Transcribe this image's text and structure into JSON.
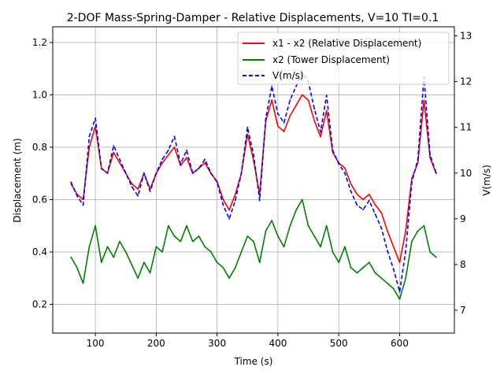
{
  "chart_data": {
    "type": "line",
    "title": "2-DOF Mass-Spring-Damper - Relative Displacements, V=10 TI=0.1",
    "xlabel": "Time (s)",
    "ylabel": "Displacement (m)",
    "y2label": "V(m/s)",
    "xlim": [
      30,
      690
    ],
    "ylim": [
      0.09,
      1.26
    ],
    "y2lim": [
      6.5,
      13.2
    ],
    "xticks": [
      "100",
      "200",
      "300",
      "400",
      "500",
      "600"
    ],
    "yticks": [
      "0.2",
      "0.4",
      "0.6",
      "0.8",
      "1.0",
      "1.2"
    ],
    "y2ticks": [
      "7",
      "8",
      "9",
      "10",
      "11",
      "12",
      "13"
    ],
    "grid": true,
    "legend_position": "upper right",
    "series": [
      {
        "name": "x1 - x2 (Relative Displacement)",
        "color": "#ff0000",
        "style": "solid",
        "axis": "left",
        "x": [
          60,
          70,
          80,
          90,
          100,
          110,
          120,
          130,
          140,
          150,
          160,
          170,
          180,
          190,
          200,
          210,
          220,
          230,
          240,
          250,
          260,
          270,
          280,
          290,
          300,
          310,
          320,
          330,
          340,
          350,
          360,
          370,
          380,
          390,
          400,
          410,
          420,
          430,
          440,
          450,
          460,
          470,
          480,
          490,
          500,
          510,
          520,
          530,
          540,
          550,
          560,
          570,
          580,
          590,
          600,
          610,
          620,
          630,
          640,
          650,
          660
        ],
        "y": [
          0.66,
          0.62,
          0.6,
          0.8,
          0.88,
          0.72,
          0.7,
          0.78,
          0.74,
          0.7,
          0.66,
          0.64,
          0.7,
          0.64,
          0.7,
          0.74,
          0.77,
          0.8,
          0.73,
          0.76,
          0.7,
          0.72,
          0.74,
          0.7,
          0.67,
          0.6,
          0.56,
          0.62,
          0.7,
          0.85,
          0.75,
          0.62,
          0.9,
          0.98,
          0.88,
          0.86,
          0.92,
          0.96,
          1.0,
          0.98,
          0.9,
          0.84,
          0.94,
          0.78,
          0.74,
          0.72,
          0.66,
          0.62,
          0.6,
          0.62,
          0.58,
          0.55,
          0.48,
          0.42,
          0.36,
          0.48,
          0.68,
          0.74,
          0.98,
          0.76,
          0.7
        ]
      },
      {
        "name": "x2 (Tower Displacement)",
        "color": "#008000",
        "style": "solid",
        "axis": "left",
        "x": [
          60,
          70,
          80,
          90,
          100,
          110,
          120,
          130,
          140,
          150,
          160,
          170,
          180,
          190,
          200,
          210,
          220,
          230,
          240,
          250,
          260,
          270,
          280,
          290,
          300,
          310,
          320,
          330,
          340,
          350,
          360,
          370,
          380,
          390,
          400,
          410,
          420,
          430,
          440,
          450,
          460,
          470,
          480,
          490,
          500,
          510,
          520,
          530,
          540,
          550,
          560,
          570,
          580,
          590,
          600,
          610,
          620,
          630,
          640,
          650,
          660
        ],
        "y": [
          0.38,
          0.34,
          0.28,
          0.42,
          0.5,
          0.36,
          0.42,
          0.38,
          0.44,
          0.4,
          0.35,
          0.3,
          0.36,
          0.32,
          0.42,
          0.4,
          0.5,
          0.46,
          0.44,
          0.5,
          0.44,
          0.46,
          0.42,
          0.4,
          0.36,
          0.34,
          0.3,
          0.34,
          0.4,
          0.46,
          0.44,
          0.36,
          0.48,
          0.52,
          0.46,
          0.42,
          0.5,
          0.56,
          0.6,
          0.5,
          0.46,
          0.42,
          0.5,
          0.4,
          0.36,
          0.42,
          0.34,
          0.32,
          0.34,
          0.36,
          0.32,
          0.3,
          0.28,
          0.26,
          0.22,
          0.3,
          0.44,
          0.48,
          0.5,
          0.4,
          0.38
        ]
      },
      {
        "name": "V(m/s)",
        "color": "#0000ff",
        "style": "dashed",
        "axis": "right",
        "x": [
          60,
          70,
          80,
          90,
          100,
          110,
          120,
          130,
          140,
          150,
          160,
          170,
          180,
          190,
          200,
          210,
          220,
          230,
          240,
          250,
          260,
          270,
          280,
          290,
          300,
          310,
          320,
          330,
          340,
          350,
          360,
          370,
          380,
          390,
          400,
          410,
          420,
          430,
          440,
          450,
          460,
          470,
          480,
          490,
          500,
          510,
          520,
          530,
          540,
          550,
          560,
          570,
          580,
          590,
          600,
          610,
          620,
          630,
          640,
          650,
          660
        ],
        "y": [
          9.8,
          9.5,
          9.3,
          10.8,
          11.2,
          10.1,
          10.0,
          10.6,
          10.3,
          10.0,
          9.7,
          9.5,
          10.0,
          9.6,
          10.0,
          10.3,
          10.5,
          10.8,
          10.2,
          10.5,
          10.0,
          10.1,
          10.3,
          10.0,
          9.8,
          9.3,
          9.0,
          9.4,
          10.0,
          11.0,
          10.4,
          9.4,
          11.2,
          11.9,
          11.3,
          11.1,
          11.6,
          11.9,
          12.2,
          12.0,
          11.4,
          10.9,
          11.7,
          10.5,
          10.2,
          10.0,
          9.6,
          9.3,
          9.2,
          9.4,
          9.1,
          8.8,
          8.3,
          7.9,
          7.4,
          8.3,
          9.8,
          10.3,
          12.1,
          10.4,
          10.0
        ]
      }
    ]
  }
}
